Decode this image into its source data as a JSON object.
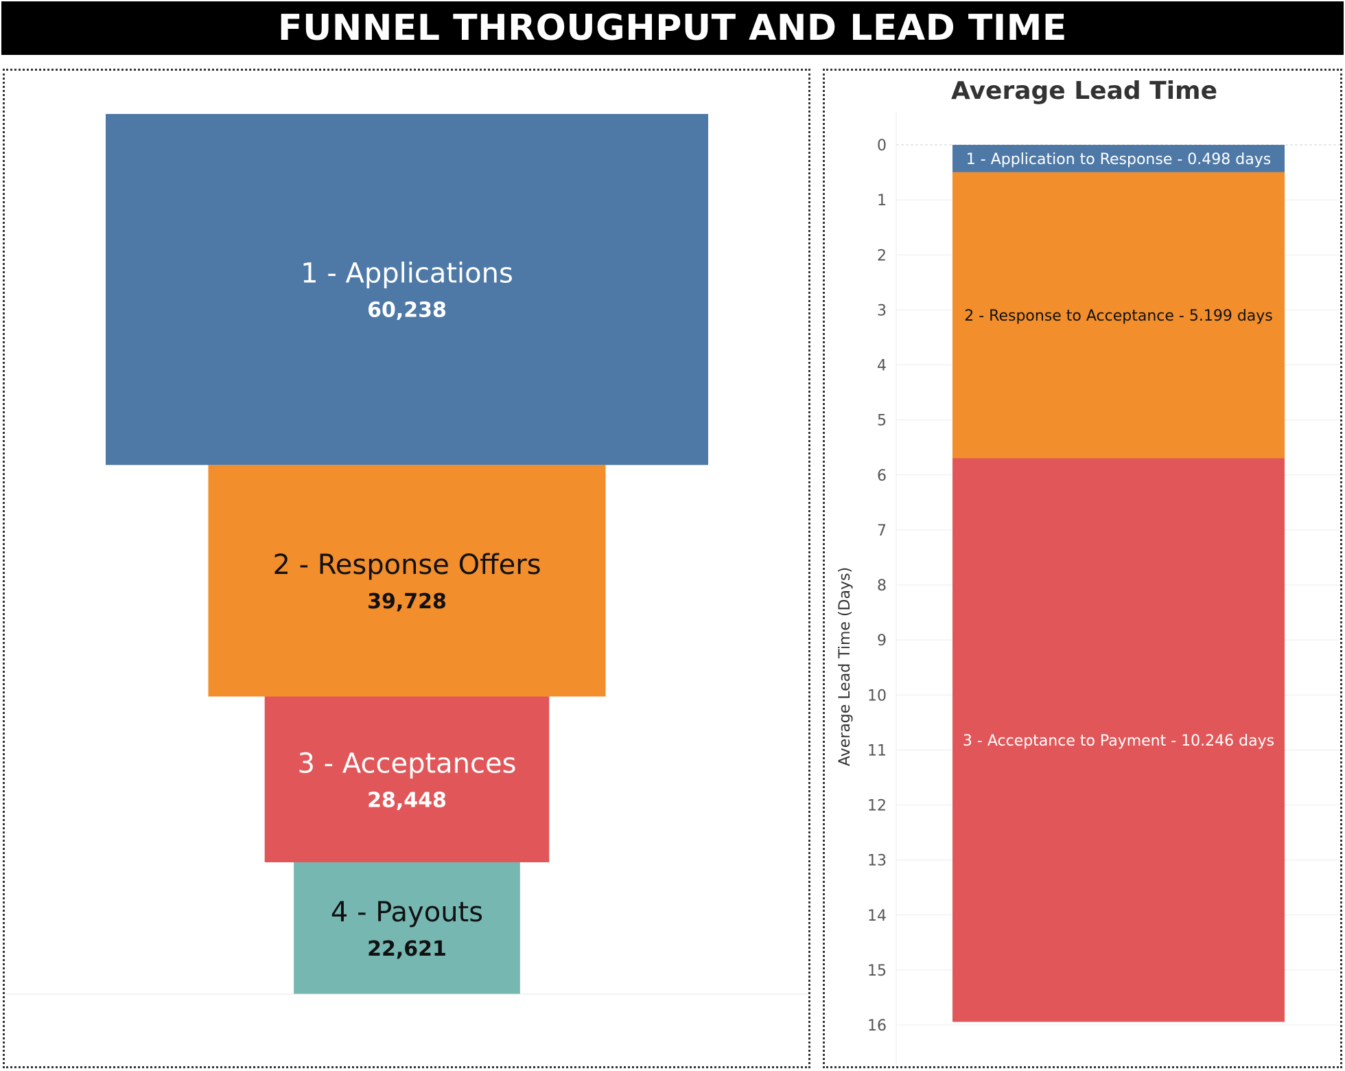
{
  "page_title": "FUNNEL THROUGHPUT AND LEAD TIME",
  "chart_data": [
    {
      "type": "bar",
      "subtype": "funnel",
      "title": "",
      "categories": [
        "1 - Applications",
        "2 - Response Offers",
        "3 - Acceptances",
        "4 - Payouts"
      ],
      "values": [
        60238,
        39728,
        28448,
        22621
      ],
      "value_labels": [
        "60,238",
        "39,728",
        "28,448",
        "22,621"
      ],
      "colors": [
        "#4e79a7",
        "#f28e2b",
        "#e15759",
        "#76b7b2"
      ],
      "label_colors": [
        "#ffffff",
        "#111111",
        "#ffffff",
        "#111111"
      ]
    },
    {
      "type": "bar",
      "subtype": "stacked",
      "title": "Average Lead Time",
      "ylabel": "Average Lead Time (Days)",
      "ylim": [
        0,
        16
      ],
      "yticks": [
        0,
        1,
        2,
        3,
        4,
        5,
        6,
        7,
        8,
        9,
        10,
        11,
        12,
        13,
        14,
        15,
        16
      ],
      "reversed_axis": true,
      "grid": true,
      "series": [
        {
          "name": "1 - Application to Response - 0.498 days",
          "value": 0.498,
          "color": "#4e79a7",
          "label_color": "#ffffff"
        },
        {
          "name": "2 - Response to Acceptance - 5.199 days",
          "value": 5.199,
          "color": "#f28e2b",
          "label_color": "#111111"
        },
        {
          "name": "3 - Acceptance to Payment - 10.246 days",
          "value": 10.246,
          "color": "#e15759",
          "label_color": "#ffffff"
        }
      ]
    }
  ]
}
